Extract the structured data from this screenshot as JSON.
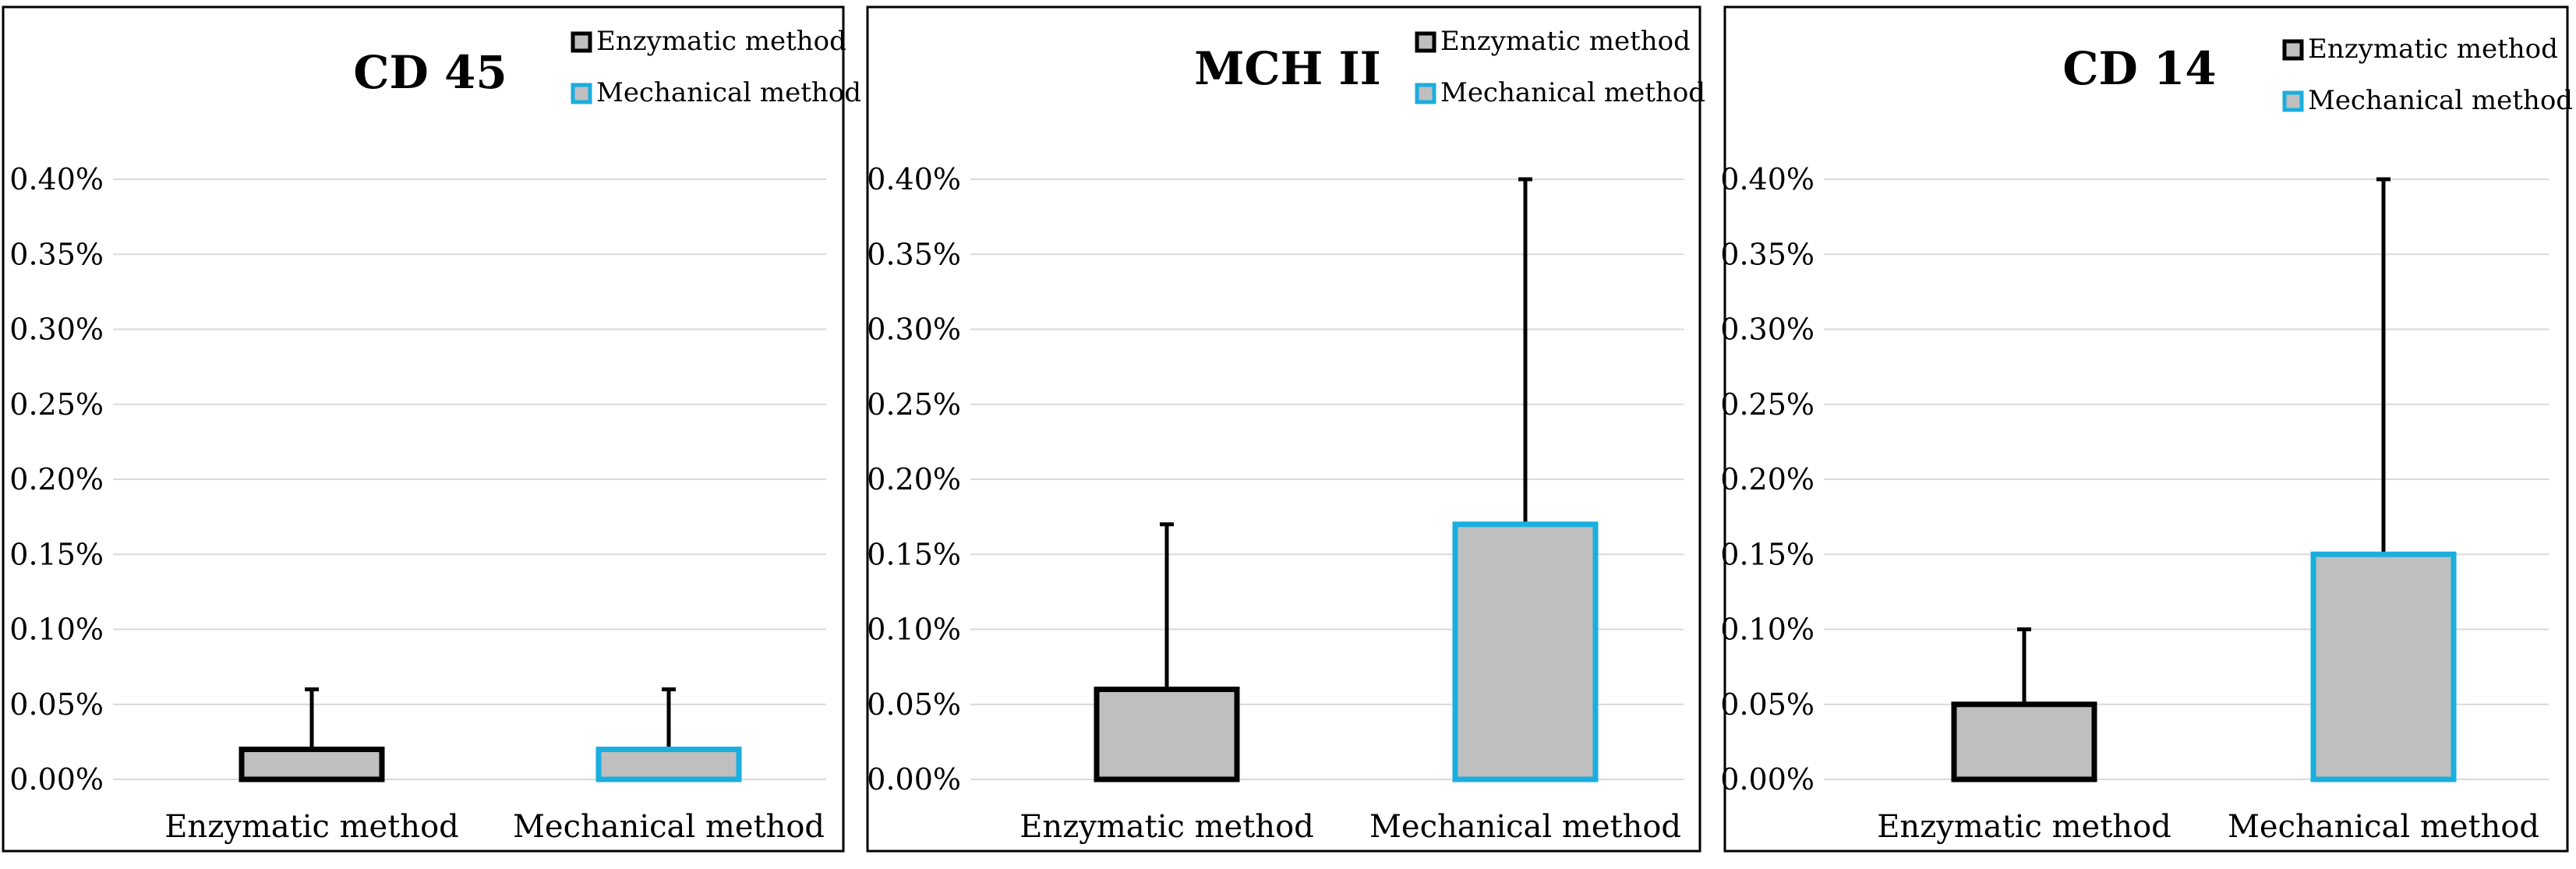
{
  "chart_data": [
    {
      "type": "bar",
      "title": "CD 45",
      "categories": [
        "Enzymatic method",
        "Mechanical  method"
      ],
      "values": [
        0.02,
        0.02
      ],
      "error_upper": [
        0.06,
        0.06
      ],
      "ylim": [
        0,
        0.4
      ],
      "yticks": [
        "0.00%",
        "0.05%",
        "0.10%",
        "0.15%",
        "0.20%",
        "0.25%",
        "0.30%",
        "0.35%",
        "0.40%"
      ],
      "legend": [
        "Enzymatic method",
        "Mechanical  method"
      ],
      "legend_position": "top-right",
      "grid": true
    },
    {
      "type": "bar",
      "title": "MCH II",
      "categories": [
        "Enzymatic method",
        "Mechanical  method"
      ],
      "values": [
        0.06,
        0.17
      ],
      "error_upper": [
        0.17,
        0.4
      ],
      "ylim": [
        0,
        0.4
      ],
      "yticks": [
        "0.00%",
        "0.05%",
        "0.10%",
        "0.15%",
        "0.20%",
        "0.25%",
        "0.30%",
        "0.35%",
        "0.40%"
      ],
      "legend": [
        "Enzymatic method",
        "Mechanical  method"
      ],
      "legend_position": "top-right",
      "grid": true
    },
    {
      "type": "bar",
      "title": "CD 14",
      "categories": [
        "Enzymatic method",
        "Mechanical  method"
      ],
      "values": [
        0.05,
        0.15
      ],
      "error_upper": [
        0.1,
        0.4
      ],
      "ylim": [
        0,
        0.4
      ],
      "yticks": [
        "0.00%",
        "0.05%",
        "0.10%",
        "0.15%",
        "0.20%",
        "0.25%",
        "0.30%",
        "0.35%",
        "0.40%"
      ],
      "legend": [
        "Enzymatic method",
        "Mechanical  method"
      ],
      "legend_position": "top-right",
      "grid": true
    }
  ],
  "colors": {
    "bar_fill": "#bfbfbf",
    "enzymatic_border": "#000000",
    "mechanical_border": "#1aaedf",
    "grid": "#d9d9d9",
    "panel_border": "#000000"
  }
}
